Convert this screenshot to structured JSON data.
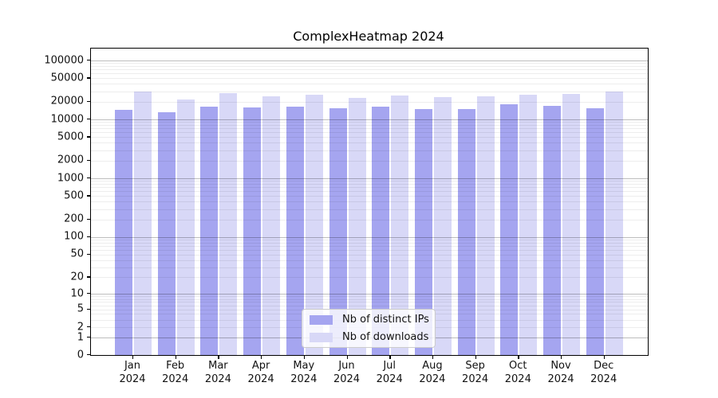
{
  "figure_title": "ComplexHeatmap 2024",
  "chart_data": {
    "type": "bar",
    "title": "ComplexHeatmap 2024",
    "categories": [
      "Jan",
      "Feb",
      "Mar",
      "Apr",
      "May",
      "Jun",
      "Jul",
      "Aug",
      "Sep",
      "Oct",
      "Nov",
      "Dec"
    ],
    "x_year": "2024",
    "series": [
      {
        "name": "Nb of distinct IPs",
        "color": "#a5a5f0",
        "values": [
          14700,
          13200,
          16600,
          15800,
          16300,
          15500,
          16600,
          14900,
          15200,
          17900,
          17100,
          15500
        ]
      },
      {
        "name": "Nb of downloads",
        "color": "#d8d8f7",
        "values": [
          29700,
          21600,
          27900,
          24900,
          26000,
          23200,
          25600,
          23700,
          24400,
          26500,
          27100,
          29400
        ]
      }
    ],
    "y_scale": "log1p (y proportional to log10(value+1), 0 at baseline)",
    "y_tick_values": [
      100000,
      50000,
      20000,
      10000,
      5000,
      2000,
      1000,
      500,
      200,
      100,
      50,
      20,
      10,
      5,
      2,
      1,
      0
    ],
    "y_tick_labels": [
      "100000",
      "50000",
      "20000",
      "10000",
      "5000",
      "2000",
      "1000",
      "500",
      "200",
      "100",
      "50",
      "20",
      "10",
      "5",
      "2",
      "1",
      "0"
    ],
    "ylim": [
      0,
      160000
    ],
    "grid": "horizontal only; major lines at powers of 10, faint minor lines at 2-9 multiples",
    "legend_position": "lower center",
    "axis_color": "#000000",
    "major_grid_color": "#bdbdbd",
    "minor_grid_color": "#ececec"
  }
}
